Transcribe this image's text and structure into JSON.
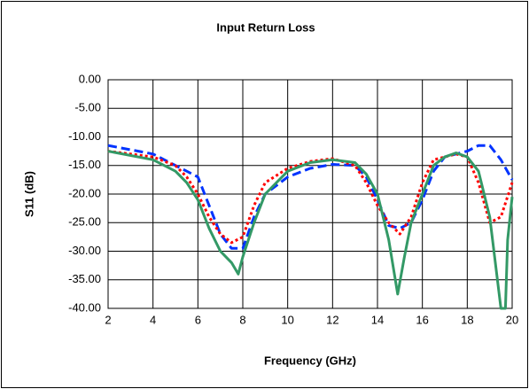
{
  "chart_data": {
    "type": "line",
    "title": "Input Return Loss",
    "x_label": "Frequency (GHz)",
    "y_label": "S11 (dB)",
    "xlim": [
      2,
      20
    ],
    "xticks": [
      2,
      4,
      6,
      8,
      10,
      12,
      14,
      16,
      18,
      20
    ],
    "ylim": [
      -40,
      0
    ],
    "yticks": [
      {
        "value": 0,
        "label": "0.00"
      },
      {
        "value": -5,
        "label": "-5.00"
      },
      {
        "value": -10,
        "label": "-10.00"
      },
      {
        "value": -15,
        "label": "-15.00"
      },
      {
        "value": -20,
        "label": "-20.00"
      },
      {
        "value": -25,
        "label": "-25.00"
      },
      {
        "value": -30,
        "label": "-30.00"
      },
      {
        "value": -35,
        "label": "-35.00"
      },
      {
        "value": -40,
        "label": "-40.00"
      }
    ],
    "grid": true,
    "series": [
      {
        "color": "#0033ff",
        "dash": "dashed",
        "x": [
          2,
          4,
          5.5,
          6,
          6.5,
          7,
          7.5,
          8,
          8.5,
          9,
          10,
          11,
          12,
          13,
          13.5,
          14,
          14.5,
          15,
          15.5,
          16,
          16.5,
          17,
          17.5,
          18,
          18.5,
          19,
          19.5,
          20
        ],
        "values": [
          -11.5,
          -13,
          -16,
          -17,
          -22,
          -27,
          -29.5,
          -29.5,
          -24,
          -20,
          -17,
          -15.5,
          -14.8,
          -15,
          -17,
          -21,
          -25.5,
          -26,
          -25,
          -21,
          -16,
          -13.5,
          -13,
          -12.5,
          -11.5,
          -11.5,
          -14,
          -17.5
        ]
      },
      {
        "color": "#ff0000",
        "dash": "dotted",
        "x": [
          2,
          4,
          5,
          5.5,
          6,
          6.5,
          7,
          7.5,
          8,
          8.5,
          9,
          10,
          11,
          12,
          13,
          13.5,
          14,
          14.5,
          15,
          15.5,
          16,
          16.5,
          17,
          17.5,
          18,
          18.5,
          19,
          19.5,
          20
        ],
        "values": [
          -12.5,
          -13.5,
          -15,
          -17,
          -20,
          -24,
          -27,
          -28.5,
          -27.5,
          -22,
          -18,
          -15.5,
          -14.3,
          -13.8,
          -15,
          -18,
          -22,
          -25,
          -27,
          -24,
          -18,
          -14,
          -13.5,
          -13,
          -13.5,
          -18,
          -25,
          -24,
          -18
        ]
      },
      {
        "color": "#339966",
        "dash": "solid",
        "x": [
          2,
          4,
          5,
          5.5,
          6,
          6.5,
          7,
          7.5,
          7.8,
          8,
          8.5,
          9,
          10,
          11,
          12,
          13,
          13.5,
          14,
          14.5,
          14.9,
          15.2,
          15.5,
          16,
          16.5,
          17,
          17.5,
          18,
          18.5,
          19,
          19.5,
          19.7,
          19.8,
          20
        ],
        "values": [
          -12.5,
          -14,
          -16,
          -18,
          -21,
          -26,
          -30,
          -32,
          -34,
          -31,
          -25,
          -20,
          -16,
          -14.5,
          -14,
          -14.5,
          -16.5,
          -20,
          -28,
          -37.5,
          -31,
          -25,
          -20,
          -15,
          -13.5,
          -12.8,
          -13.5,
          -16,
          -24,
          -40,
          -40,
          -28,
          -20.5
        ]
      }
    ]
  }
}
